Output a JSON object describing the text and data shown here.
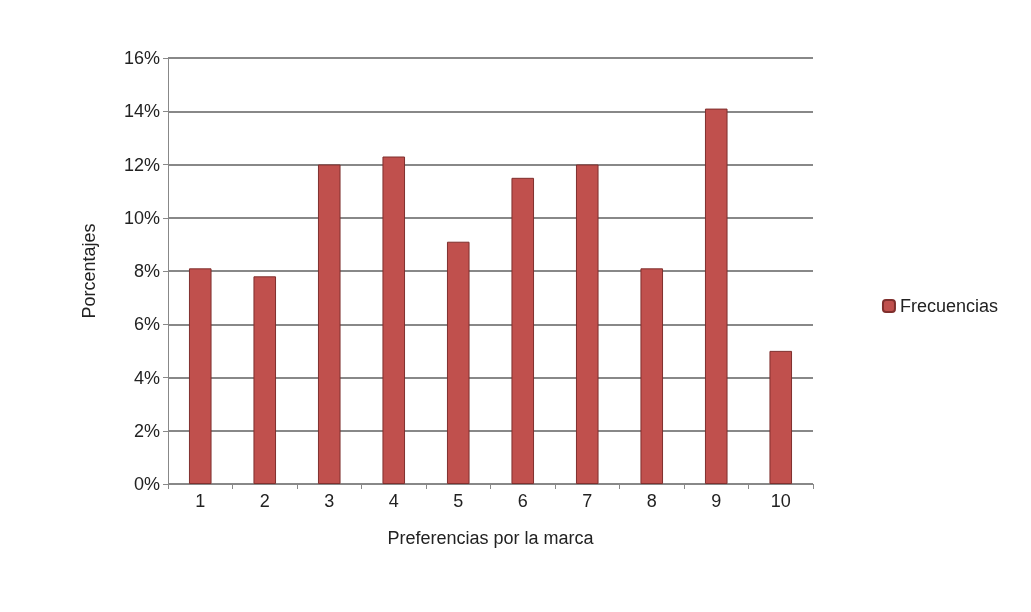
{
  "chart_data": {
    "type": "bar",
    "xlabel": "Preferencias por la marca",
    "ylabel": "Porcentajes",
    "categories": [
      "1",
      "2",
      "3",
      "4",
      "5",
      "6",
      "7",
      "8",
      "9",
      "10"
    ],
    "series": [
      {
        "name": "Frecuencias",
        "color": "#c0504d",
        "values": [
          8.1,
          7.8,
          12,
          12.3,
          9.1,
          11.5,
          12,
          8.1,
          14.1,
          5
        ]
      }
    ],
    "ylim": [
      0,
      16
    ],
    "yticks": [
      {
        "value": 0,
        "label": "0%"
      },
      {
        "value": 2,
        "label": "2%"
      },
      {
        "value": 4,
        "label": "4%"
      },
      {
        "value": 6,
        "label": "6%"
      },
      {
        "value": 8,
        "label": "8%"
      },
      {
        "value": 10,
        "label": "10%"
      },
      {
        "value": 12,
        "label": "12%"
      },
      {
        "value": 14,
        "label": "14%"
      },
      {
        "value": 16,
        "label": "16%"
      }
    ],
    "grid": "y",
    "legend": "right"
  }
}
